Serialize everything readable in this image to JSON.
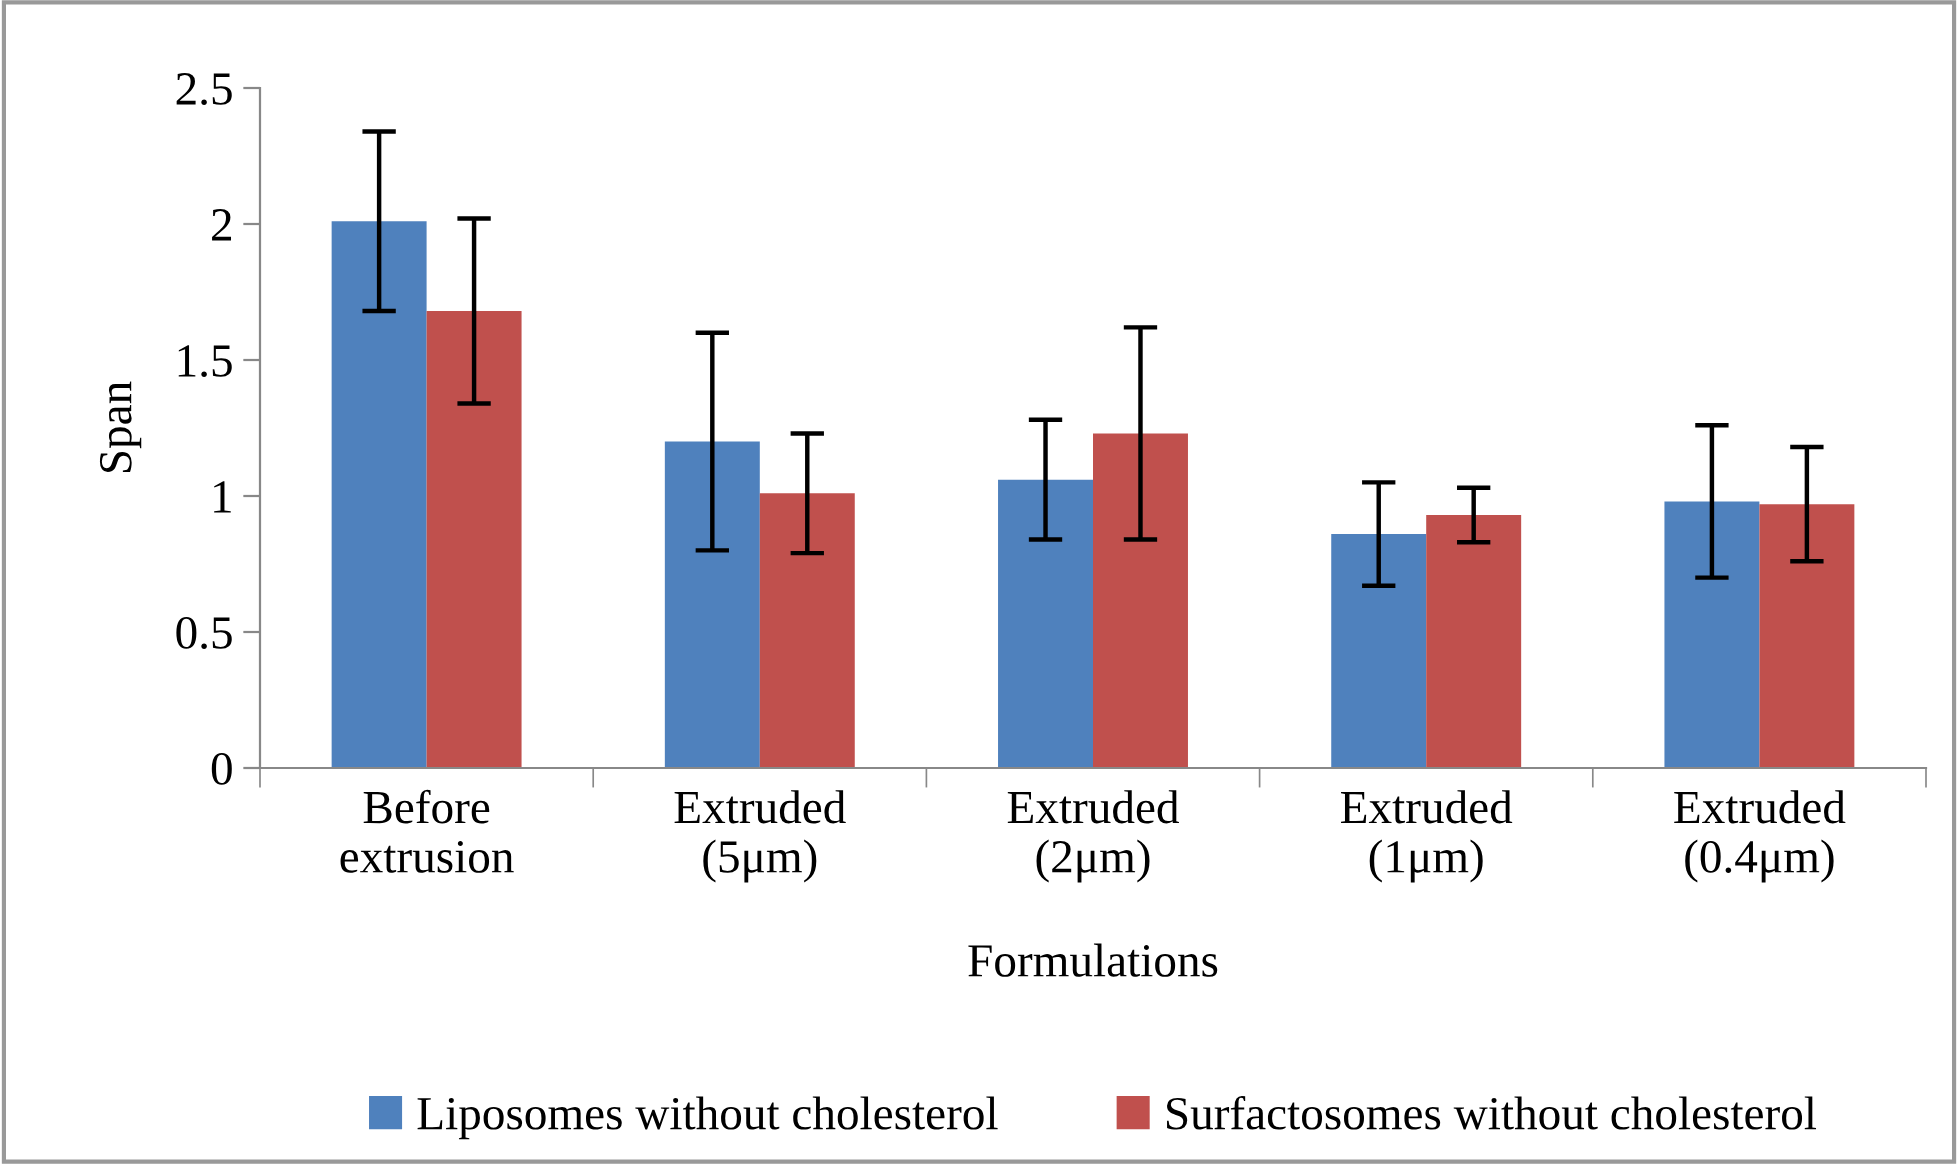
{
  "chart_data": {
    "type": "bar",
    "xlabel": "Formulations",
    "ylabel": "Span",
    "categories": [
      "Before\nextrusion",
      "Extruded\n(5μm)",
      "Extruded\n(2μm)",
      "Extruded\n(1μm)",
      "Extruded\n(0.4μm)"
    ],
    "series": [
      {
        "name": "Liposomes without cholesterol",
        "color": "#4f81bd",
        "values": [
          2.01,
          1.2,
          1.06,
          0.86,
          0.98
        ],
        "errors": [
          0.33,
          0.4,
          0.22,
          0.19,
          0.28
        ]
      },
      {
        "name": "Surfactosomes without cholesterol",
        "color": "#c0504d",
        "values": [
          1.68,
          1.01,
          1.23,
          0.93,
          0.97
        ],
        "errors": [
          0.34,
          0.22,
          0.39,
          0.1,
          0.21
        ]
      }
    ],
    "ylim": [
      0,
      2.5
    ],
    "yticks": [
      0,
      0.5,
      1,
      1.5,
      2,
      2.5
    ],
    "grid": false,
    "legend": "bottom"
  }
}
